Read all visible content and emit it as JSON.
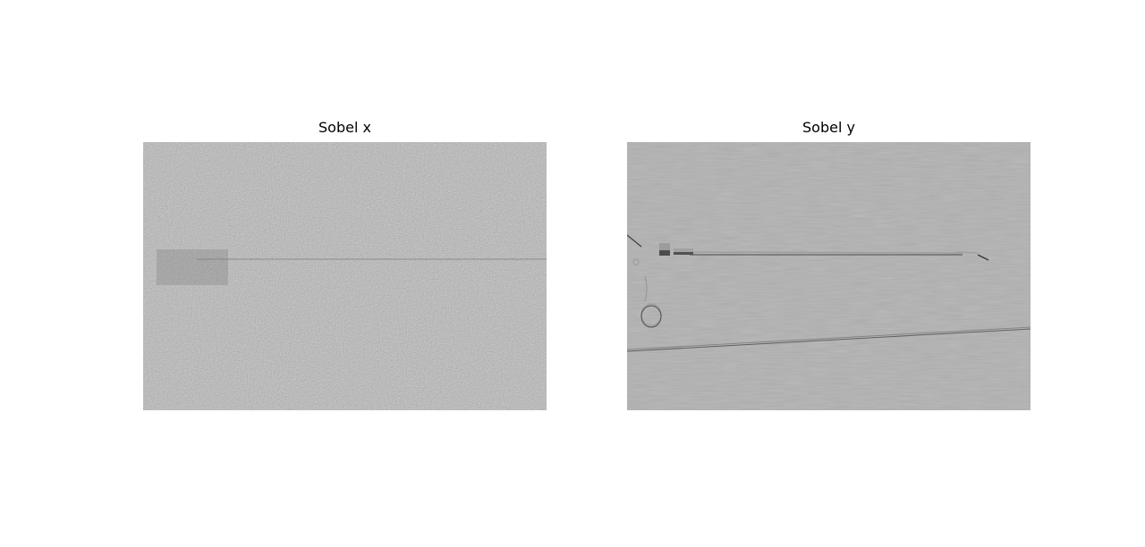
{
  "figure": {
    "panels": [
      {
        "title": "Sobel x",
        "image": "sobel-x-gradient-image"
      },
      {
        "title": "Sobel y",
        "image": "sobel-y-gradient-image"
      }
    ]
  }
}
